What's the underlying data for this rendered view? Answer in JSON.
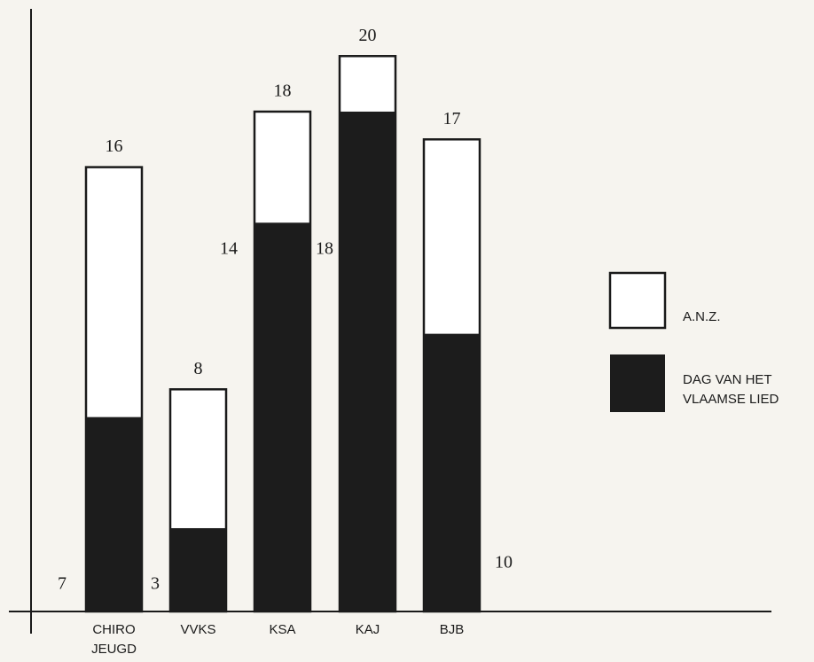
{
  "chart_data": {
    "type": "bar",
    "categories": [
      "CHIRO JEUGD",
      "VVKS",
      "KSA",
      "KAJ",
      "BJB"
    ],
    "series": [
      {
        "name": "A.N.Z.",
        "color": "#ffffff",
        "values": [
          16,
          8,
          18,
          20,
          17
        ]
      },
      {
        "name": "DAG VAN HET VLAAMSE LIED",
        "color": "#1c1c1c",
        "values": [
          7,
          3,
          14,
          18,
          10
        ]
      }
    ],
    "ylim": [
      0,
      21.7
    ]
  }
}
